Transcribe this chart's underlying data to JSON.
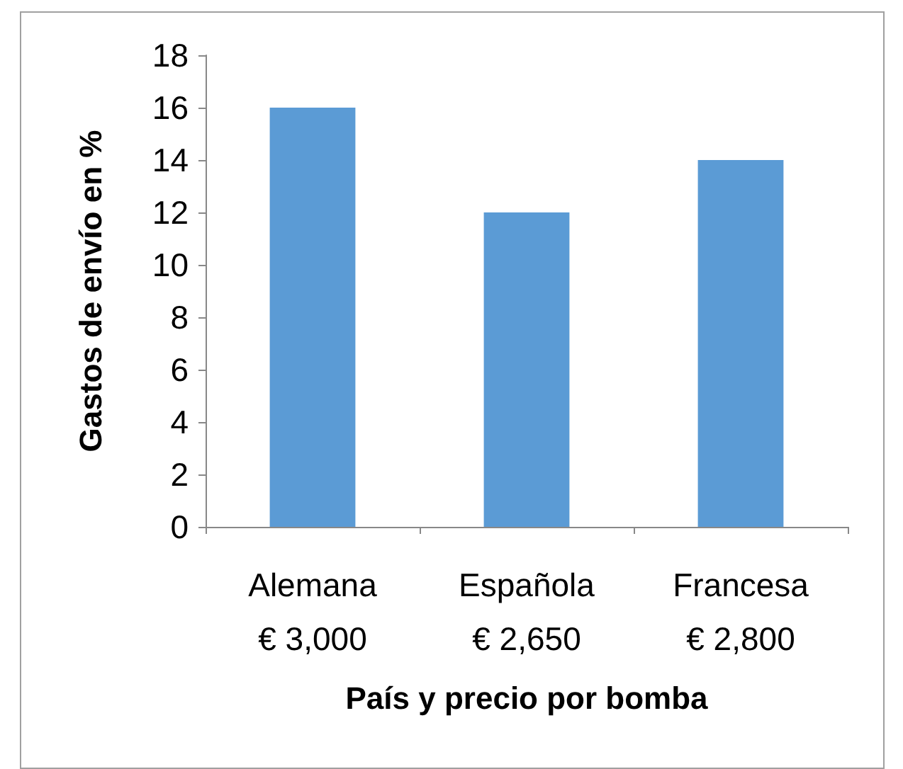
{
  "chart_data": {
    "type": "bar",
    "xlabel": "País y precio por bomba",
    "ylabel": "Gastos de envío en %",
    "categories": [
      "Alemana\n€ 3,000",
      "Española\n€ 2,650",
      "Francesa\n€ 2,800"
    ],
    "values": [
      16,
      12,
      14
    ],
    "color": "#5b9bd5",
    "ylim": [
      0,
      18
    ],
    "yticks": [
      0,
      2,
      4,
      6,
      8,
      10,
      12,
      14,
      16,
      18
    ],
    "grid": false
  }
}
